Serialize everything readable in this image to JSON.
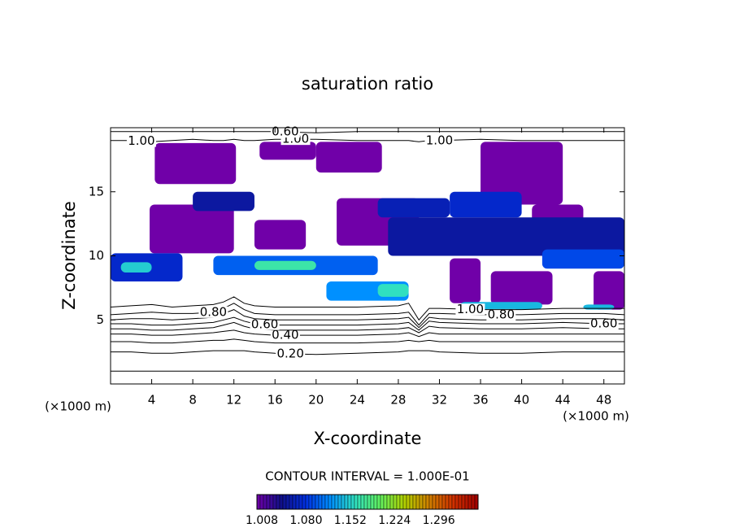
{
  "chart_data": {
    "type": "contour",
    "title": "saturation ratio",
    "x_label": "X-coordinate",
    "y_label": "Z-coordinate",
    "x_unit_left": "(×1000 m)",
    "x_unit_right": "(×1000 m)",
    "contour_interval": "CONTOUR INTERVAL = 1.000E-01",
    "xlim": [
      0,
      50
    ],
    "ylim": [
      0,
      20
    ],
    "xticks": [
      4,
      8,
      12,
      16,
      20,
      24,
      28,
      32,
      36,
      40,
      44,
      48
    ],
    "yticks": [
      5,
      10,
      15
    ],
    "colorbar_lim": [
      1.0,
      1.36
    ],
    "colorbar_ticks": [
      1.008,
      {
        "value": 1.08,
        "label": "1.080"
      },
      1.152,
      1.224,
      1.296
    ],
    "colormap": [
      "#7000a8",
      "#10108a",
      "#0030e0",
      "#0090ff",
      "#30e0c0",
      "#60f060",
      "#b0d000",
      "#d08000",
      "#d03000",
      "#a00000"
    ],
    "line_color": "#000000",
    "x": [
      0,
      2,
      4,
      6,
      8,
      10,
      11,
      12,
      13,
      14,
      16,
      20,
      24,
      28,
      29,
      30,
      31,
      32,
      36,
      40,
      44,
      48,
      50
    ],
    "contours": [
      {
        "level": 0.1,
        "labels": [],
        "z": [
          1.0,
          1.0,
          1.0,
          1.0,
          1.0,
          1.0,
          1.0,
          1.0,
          1.0,
          1.0,
          1.0,
          1.0,
          1.0,
          1.0,
          1.0,
          1.0,
          1.0,
          1.0,
          1.0,
          1.0,
          1.0,
          1.0,
          1.0
        ]
      },
      {
        "level": 0.2,
        "labels": [
          "0.20"
        ],
        "z": [
          2.5,
          2.5,
          2.4,
          2.4,
          2.5,
          2.6,
          2.6,
          2.6,
          2.6,
          2.5,
          2.4,
          2.3,
          2.4,
          2.5,
          2.6,
          2.6,
          2.6,
          2.5,
          2.4,
          2.4,
          2.5,
          2.5,
          2.5
        ]
      },
      {
        "level": 0.3,
        "labels": [],
        "z": [
          3.3,
          3.3,
          3.2,
          3.2,
          3.3,
          3.4,
          3.4,
          3.5,
          3.4,
          3.3,
          3.2,
          3.2,
          3.2,
          3.3,
          3.4,
          3.3,
          3.4,
          3.3,
          3.3,
          3.3,
          3.3,
          3.3,
          3.3
        ]
      },
      {
        "level": 0.4,
        "labels": [
          "0.40"
        ],
        "z": [
          3.9,
          3.9,
          3.8,
          3.8,
          3.9,
          4.0,
          4.1,
          4.2,
          4.0,
          3.9,
          3.8,
          3.8,
          3.8,
          3.9,
          4.0,
          3.7,
          4.0,
          3.9,
          3.9,
          3.9,
          3.9,
          3.9,
          3.9
        ]
      },
      {
        "level": 0.5,
        "labels": [],
        "z": [
          4.3,
          4.3,
          4.2,
          4.2,
          4.3,
          4.4,
          4.6,
          4.8,
          4.5,
          4.3,
          4.2,
          4.2,
          4.2,
          4.3,
          4.4,
          4.0,
          4.5,
          4.4,
          4.3,
          4.3,
          4.4,
          4.3,
          4.3
        ]
      },
      {
        "level": 0.6,
        "labels": [
          "0.60",
          "0.60"
        ],
        "z": [
          4.7,
          4.7,
          4.6,
          4.6,
          4.7,
          4.8,
          5.0,
          5.2,
          4.9,
          4.7,
          4.6,
          4.6,
          4.6,
          4.7,
          4.8,
          4.2,
          4.9,
          4.8,
          4.7,
          4.7,
          4.8,
          4.7,
          4.7
        ]
      },
      {
        "level": 0.7,
        "labels": [],
        "z": [
          5.0,
          5.1,
          5.1,
          5.0,
          5.1,
          5.2,
          5.5,
          5.8,
          5.3,
          5.1,
          5.0,
          5.0,
          5.0,
          5.1,
          5.2,
          4.4,
          5.2,
          5.1,
          5.0,
          5.0,
          5.1,
          5.1,
          5.0
        ]
      },
      {
        "level": 0.8,
        "labels": [
          "0.80",
          "0.80"
        ],
        "z": [
          5.4,
          5.5,
          5.6,
          5.5,
          5.5,
          5.6,
          5.9,
          6.3,
          5.8,
          5.5,
          5.4,
          5.4,
          5.4,
          5.5,
          5.6,
          4.6,
          5.5,
          5.5,
          5.4,
          5.4,
          5.5,
          5.5,
          5.4
        ]
      },
      {
        "level": 1.0,
        "labels": [
          "1.00"
        ],
        "z": [
          6.0,
          6.1,
          6.2,
          6.0,
          6.1,
          6.2,
          6.4,
          6.8,
          6.3,
          6.1,
          6.0,
          6.0,
          6.0,
          6.1,
          6.3,
          5.0,
          5.9,
          5.9,
          5.8,
          5.8,
          5.9,
          5.9,
          5.9
        ]
      },
      {
        "level": 1.0,
        "labels": [
          "1.00",
          "1.00",
          "1.00"
        ],
        "z": [
          19.0,
          19.0,
          18.9,
          19.0,
          19.1,
          19.0,
          19.0,
          19.1,
          19.0,
          19.0,
          19.1,
          19.1,
          19.0,
          19.0,
          19.0,
          18.9,
          19.0,
          19.0,
          19.1,
          19.0,
          19.0,
          19.0,
          19.0
        ]
      },
      {
        "level": 0.6,
        "labels": [
          "0.60"
        ],
        "z": [
          19.7,
          19.7,
          19.7,
          19.7,
          19.7,
          19.7,
          19.7,
          19.7,
          19.7,
          19.7,
          19.7,
          19.6,
          19.7,
          19.7,
          19.7,
          19.7,
          19.7,
          19.7,
          19.7,
          19.7,
          19.7,
          19.7,
          19.7
        ]
      }
    ],
    "patches": [
      {
        "x": [
          4.3,
          12.2
        ],
        "z": [
          15.6,
          18.8
        ],
        "value": 1.0
      },
      {
        "x": [
          14.5,
          20
        ],
        "z": [
          17.5,
          18.9
        ],
        "value": 1.0
      },
      {
        "x": [
          20,
          26.4
        ],
        "z": [
          16.5,
          18.9
        ],
        "value": 1.0
      },
      {
        "x": [
          36,
          44
        ],
        "z": [
          14,
          18.9
        ],
        "value": 1.0
      },
      {
        "x": [
          3.8,
          12
        ],
        "z": [
          10.2,
          14
        ],
        "value": 1.0
      },
      {
        "x": [
          14,
          19
        ],
        "z": [
          10.5,
          12.8
        ],
        "value": 1.0
      },
      {
        "x": [
          22,
          30
        ],
        "z": [
          10.8,
          14.5
        ],
        "value": 1.0
      },
      {
        "x": [
          33,
          36
        ],
        "z": [
          6.3,
          9.8
        ],
        "value": 1.0
      },
      {
        "x": [
          37,
          43
        ],
        "z": [
          6.2,
          8.8
        ],
        "value": 1.0
      },
      {
        "x": [
          41,
          46
        ],
        "z": [
          11,
          14
        ],
        "value": 1.0
      },
      {
        "x": [
          47,
          50
        ],
        "z": [
          5.8,
          8.8
        ],
        "value": 1.0
      },
      {
        "x": [
          0,
          7
        ],
        "z": [
          8,
          10.2
        ],
        "value": 1.07
      },
      {
        "x": [
          1,
          4
        ],
        "z": [
          8.7,
          9.5
        ],
        "value": 1.15
      },
      {
        "x": [
          10,
          26
        ],
        "z": [
          8.5,
          10
        ],
        "value": 1.1
      },
      {
        "x": [
          14,
          20
        ],
        "z": [
          8.9,
          9.6
        ],
        "value": 1.17
      },
      {
        "x": [
          8,
          14
        ],
        "z": [
          13.5,
          15
        ],
        "value": 1.05
      },
      {
        "x": [
          26,
          33
        ],
        "z": [
          13,
          14.5
        ],
        "value": 1.06
      },
      {
        "x": [
          27,
          50
        ],
        "z": [
          10,
          13
        ],
        "value": 1.05
      },
      {
        "x": [
          33,
          40
        ],
        "z": [
          13,
          15
        ],
        "value": 1.07
      },
      {
        "x": [
          42,
          50
        ],
        "z": [
          9,
          10.5
        ],
        "value": 1.09
      },
      {
        "x": [
          21,
          29
        ],
        "z": [
          6.5,
          8
        ],
        "value": 1.12
      },
      {
        "x": [
          26,
          29
        ],
        "z": [
          6.8,
          7.8
        ],
        "value": 1.16
      },
      {
        "x": [
          34,
          42
        ],
        "z": [
          5.8,
          6.4
        ],
        "value": 1.14
      },
      {
        "x": [
          46,
          49
        ],
        "z": [
          5.8,
          6.2
        ],
        "value": 1.14
      }
    ]
  }
}
